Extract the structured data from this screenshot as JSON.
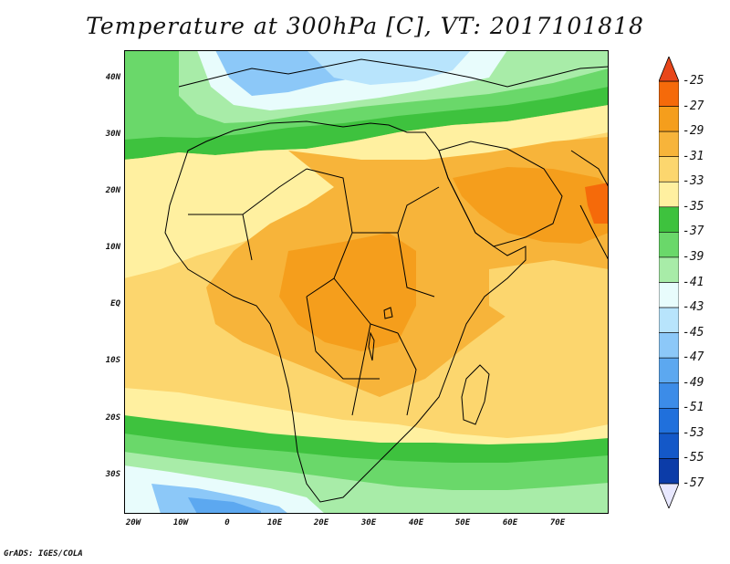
{
  "title": "Temperature at 300hPa [C], VT: 2017101818",
  "credit": "GrADS: IGES/COLA",
  "map": {
    "lat_labels": [
      "40N",
      "30N",
      "20N",
      "10N",
      "EQ",
      "10S",
      "20S",
      "30S"
    ],
    "lon_labels": [
      "20W",
      "10W",
      "0",
      "10E",
      "20E",
      "30E",
      "40E",
      "50E",
      "60E",
      "70E"
    ],
    "lat_range": [
      -36,
      45
    ],
    "lon_range": [
      -23,
      80
    ],
    "field": "temperature",
    "level": "300hPa",
    "unit": "C"
  },
  "colorbar": {
    "labels": [
      "-25",
      "-27",
      "-29",
      "-31",
      "-33",
      "-35",
      "-37",
      "-39",
      "-41",
      "-43",
      "-45",
      "-47",
      "-49",
      "-51",
      "-53",
      "-55",
      "-57"
    ],
    "colors": [
      "#e8461a",
      "#f56a0a",
      "#f59e1c",
      "#f7b43a",
      "#fcd66e",
      "#fff0a0",
      "#3ec23e",
      "#6ad86a",
      "#a8eca8",
      "#e8fcfc",
      "#b8e4fc",
      "#8cc8f8",
      "#5ca8f0",
      "#3c8ce8",
      "#2070dc",
      "#1458c8",
      "#0c3ca8",
      "#081870"
    ],
    "over_color": "#e8461a",
    "under_color": "#e8e8ff"
  }
}
